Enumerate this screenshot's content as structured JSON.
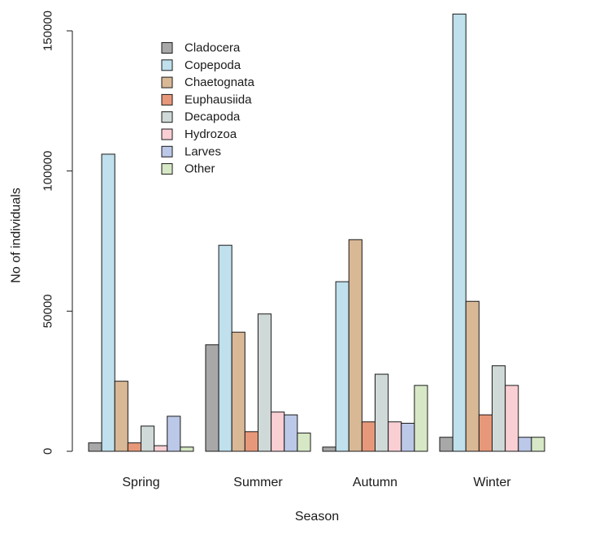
{
  "chart_data": {
    "type": "bar",
    "title": "",
    "xlabel": "Season",
    "ylabel": "No of individuals",
    "ylim": [
      0,
      160000
    ],
    "y_ticks": [
      0,
      50000,
      100000,
      150000
    ],
    "y_tick_labels": [
      "0",
      "50000",
      "100000",
      "150000"
    ],
    "categories": [
      "Spring",
      "Summer",
      "Autumn",
      "Winter"
    ],
    "legend_position": "top-left",
    "series": [
      {
        "name": "Cladocera",
        "color": "#a8a8a8",
        "values": [
          3000,
          38000,
          1500,
          5000
        ]
      },
      {
        "name": "Copepoda",
        "color": "#bfe0ec",
        "values": [
          106000,
          73500,
          60500,
          156000
        ]
      },
      {
        "name": "Chaetognata",
        "color": "#d9b896",
        "values": [
          25000,
          42500,
          75500,
          53500
        ]
      },
      {
        "name": "Euphausiida",
        "color": "#e8987a",
        "values": [
          3000,
          7000,
          10500,
          13000
        ]
      },
      {
        "name": "Decapoda",
        "color": "#cfd9d7",
        "values": [
          9000,
          49000,
          27500,
          30500
        ]
      },
      {
        "name": "Hydrozoa",
        "color": "#f9cfd4",
        "values": [
          2000,
          14000,
          10500,
          23500
        ]
      },
      {
        "name": "Larves",
        "color": "#bcc8e8",
        "values": [
          12500,
          13000,
          10000,
          5000
        ]
      },
      {
        "name": "Other",
        "color": "#d6e8c5",
        "values": [
          1500,
          6500,
          23500,
          5000
        ]
      }
    ]
  }
}
